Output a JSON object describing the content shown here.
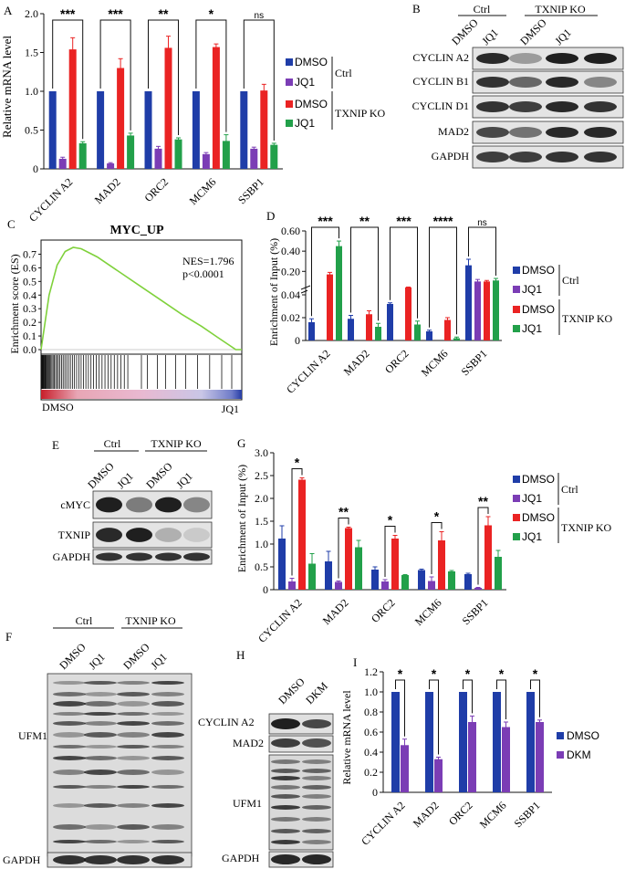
{
  "colors": {
    "dmso_ctrl": "#1f3da8",
    "jq1_ctrl": "#7b3db5",
    "dmso_ko": "#ea2323",
    "jq1_ko": "#22a04a",
    "dkm": "#7b3db5",
    "gsea_line": "#7fd13b"
  },
  "legend4": {
    "dmso": "DMSO",
    "jq1": "JQ1",
    "ctrl": "Ctrl",
    "ko": "TXNIP KO"
  },
  "legendI": {
    "dmso": "DMSO",
    "dkm": "DKM"
  },
  "genes": [
    "CYCLIN A2",
    "MAD2",
    "ORC2",
    "MCM6",
    "SSBP1"
  ],
  "panelA": {
    "letter": "A",
    "chart_data": {
      "type": "bar",
      "ylabel": "Relative mRNA level",
      "ylim": [
        0,
        2.0
      ],
      "yticks": [
        "0",
        "0.5",
        "1.0",
        "1.5",
        "2.0"
      ],
      "categories": [
        "CYCLIN A2",
        "MAD2",
        "ORC2",
        "MCM6",
        "SSBP1"
      ],
      "series": [
        {
          "name": "DMSO Ctrl",
          "values": [
            1.0,
            1.0,
            1.0,
            1.0,
            1.0
          ],
          "err": [
            0,
            0,
            0,
            0,
            0
          ]
        },
        {
          "name": "JQ1 Ctrl",
          "values": [
            0.13,
            0.07,
            0.26,
            0.19,
            0.26
          ],
          "err": [
            0.02,
            0.01,
            0.03,
            0.02,
            0.02
          ]
        },
        {
          "name": "DMSO TXNIP KO",
          "values": [
            1.54,
            1.3,
            1.56,
            1.57,
            1.01
          ],
          "err": [
            0.15,
            0.12,
            0.15,
            0.04,
            0.08
          ]
        },
        {
          "name": "JQ1 TXNIP KO",
          "values": [
            0.33,
            0.43,
            0.38,
            0.36,
            0.31
          ],
          "err": [
            0.02,
            0.03,
            0.02,
            0.08,
            0.02
          ]
        }
      ],
      "significance": [
        "***",
        "***",
        "**",
        "*",
        "ns"
      ]
    }
  },
  "panelB": {
    "letter": "B",
    "ctrl": "Ctrl",
    "ko": "TXNIP KO",
    "lanes": [
      "DMSO",
      "JQ1",
      "DMSO",
      "JQ1"
    ],
    "rows": [
      "CYCLIN A2",
      "CYCLIN B1",
      "CYCLIN D1",
      "MAD2",
      "GAPDH"
    ]
  },
  "panelC": {
    "letter": "C",
    "title": "MYC_UP",
    "ylabel": "Enrichment score (ES)",
    "nes": "NES=1.796",
    "pval": "p<0.0001",
    "yticks": [
      "0.7",
      "0.6",
      "0.5",
      "0.4",
      "0.3",
      "0.2",
      "0.1",
      "0.0"
    ],
    "left_label": "DMSO",
    "right_label": "JQ1",
    "chart_data": {
      "type": "line",
      "title": "MYC_UP",
      "ylabel": "Enrichment score (ES)",
      "ylim": [
        0,
        0.75
      ],
      "x": [
        0,
        0.04,
        0.08,
        0.12,
        0.16,
        0.2,
        0.24,
        0.28,
        0.32,
        0.4,
        0.5,
        0.6,
        0.7,
        0.8,
        0.88,
        0.94,
        0.97,
        1.0
      ],
      "y": [
        0,
        0.4,
        0.62,
        0.72,
        0.75,
        0.74,
        0.71,
        0.68,
        0.64,
        0.56,
        0.46,
        0.36,
        0.26,
        0.17,
        0.09,
        0.03,
        0.0,
        0.0
      ]
    }
  },
  "panelD": {
    "letter": "D",
    "chart_data": {
      "type": "bar",
      "ylabel": "Enrichment of Input (%)",
      "yticks_low": [
        "0",
        "0.02",
        "0.04"
      ],
      "yticks_high": [
        "0.20",
        "0.40",
        "0.60"
      ],
      "categories": [
        "CYCLIN A2",
        "MAD2",
        "ORC2",
        "MCM6",
        "SSBP1"
      ],
      "series": [
        {
          "name": "DMSO Ctrl",
          "values": [
            0.016,
            0.019,
            0.032,
            0.008,
            0.26
          ],
          "err": [
            0.003,
            0.003,
            0.001,
            0.001,
            0.06
          ]
        },
        {
          "name": "JQ1 Ctrl",
          "values": [
            0.0,
            0.0,
            0.0,
            0.0,
            0.1
          ],
          "err": [
            0,
            0,
            0,
            0,
            0.02
          ]
        },
        {
          "name": "DMSO TXNIP KO",
          "values": [
            0.17,
            0.023,
            0.042,
            0.018,
            0.1
          ],
          "err": [
            0.02,
            0.003,
            0.003,
            0.002,
            0.01
          ]
        },
        {
          "name": "JQ1 TXNIP KO",
          "values": [
            0.45,
            0.012,
            0.014,
            0.002,
            0.11
          ],
          "err": [
            0.05,
            0.003,
            0.003,
            0.001,
            0.02
          ]
        }
      ],
      "significance": [
        "***",
        "**",
        "***",
        "****",
        "ns"
      ]
    }
  },
  "panelE": {
    "letter": "E",
    "ctrl": "Ctrl",
    "ko": "TXNIP KO",
    "lanes": [
      "DMSO",
      "JQ1",
      "DMSO",
      "JQ1"
    ],
    "rows": [
      "cMYC",
      "TXNIP",
      "GAPDH"
    ]
  },
  "panelF": {
    "letter": "F",
    "ctrl": "Ctrl",
    "ko": "TXNIP KO",
    "lanes": [
      "DMSO",
      "JQ1",
      "DMSO",
      "JQ1"
    ],
    "ufm1": "UFM1",
    "gapdh": "GAPDH"
  },
  "panelG": {
    "letter": "G",
    "chart_data": {
      "type": "bar",
      "ylabel": "Enrichment of Input (%)",
      "ylim": [
        0,
        3.0
      ],
      "yticks": [
        "0",
        "0.5",
        "1.0",
        "1.5",
        "2.0",
        "2.5",
        "3.0"
      ],
      "categories": [
        "CYCLIN A2",
        "MAD2",
        "ORC2",
        "MCM6",
        "SSBP1"
      ],
      "series": [
        {
          "name": "DMSO Ctrl",
          "values": [
            1.12,
            0.62,
            0.44,
            0.43,
            0.34
          ],
          "err": [
            0.28,
            0.22,
            0.06,
            0.02,
            0.02
          ]
        },
        {
          "name": "JQ1 Ctrl",
          "values": [
            0.18,
            0.17,
            0.18,
            0.19,
            0.04
          ],
          "err": [
            0.07,
            0.02,
            0.04,
            0.09,
            0.01
          ]
        },
        {
          "name": "DMSO TXNIP KO",
          "values": [
            2.41,
            1.35,
            1.12,
            1.08,
            1.41
          ],
          "err": [
            0.04,
            0.02,
            0.07,
            0.19,
            0.19
          ]
        },
        {
          "name": "JQ1 TXNIP KO",
          "values": [
            0.57,
            0.93,
            0.32,
            0.4,
            0.72
          ],
          "err": [
            0.22,
            0.15,
            0.01,
            0.02,
            0.14
          ]
        }
      ],
      "significance": [
        "*",
        "**",
        "*",
        "*",
        "**"
      ]
    }
  },
  "panelH": {
    "letter": "H",
    "lanes": [
      "DMSO",
      "DKM"
    ],
    "rows": [
      "CYCLIN A2",
      "MAD2",
      "UFM1",
      "GAPDH"
    ]
  },
  "panelI": {
    "letter": "I",
    "chart_data": {
      "type": "bar",
      "ylabel": "Relative mRNA level",
      "ylim": [
        0,
        1.2
      ],
      "yticks": [
        "0",
        "0.2",
        "0.4",
        "0.6",
        "0.8",
        "1.0",
        "1.2"
      ],
      "categories": [
        "CYCLIN A2",
        "MAD2",
        "ORC2",
        "MCM6",
        "SSBP1"
      ],
      "series": [
        {
          "name": "DMSO",
          "values": [
            1.0,
            1.0,
            1.0,
            1.0,
            1.0
          ],
          "err": [
            0,
            0,
            0,
            0,
            0
          ]
        },
        {
          "name": "DKM",
          "values": [
            0.47,
            0.33,
            0.7,
            0.65,
            0.7
          ],
          "err": [
            0.06,
            0.02,
            0.06,
            0.05,
            0.02
          ]
        }
      ],
      "significance": [
        "*",
        "*",
        "*",
        "*",
        "*"
      ]
    }
  }
}
